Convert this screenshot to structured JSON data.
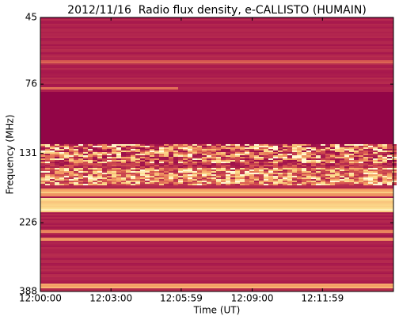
{
  "chart_data": {
    "type": "spectrogram",
    "title": "2012/11/16  Radio flux density, e-CALLISTO (HUMAIN)",
    "xlabel": "Time (UT)",
    "ylabel": "Frequency (MHz)",
    "xlim": [
      0,
      900
    ],
    "xticks": [
      {
        "value": 0,
        "label": "12:00:00"
      },
      {
        "value": 180,
        "label": "12:03:00"
      },
      {
        "value": 359,
        "label": "12:05:59"
      },
      {
        "value": 540,
        "label": "12:09:00"
      },
      {
        "value": 719,
        "label": "12:11:59"
      }
    ],
    "ylim": [
      388,
      45
    ],
    "yscale": "log",
    "yticks": [
      45,
      76,
      131,
      226,
      388
    ]
  }
}
